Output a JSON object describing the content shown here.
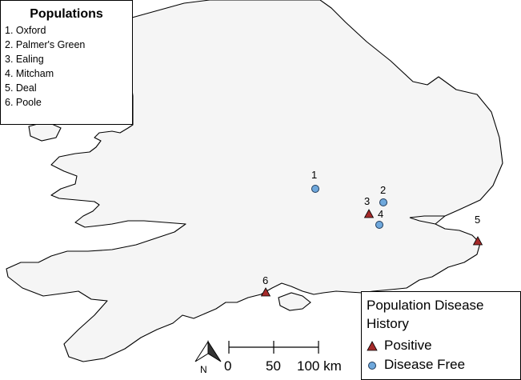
{
  "map": {
    "land_color": "#f5f5f5",
    "coast_color": "#000000"
  },
  "population_legend": {
    "title": "Populations",
    "items": [
      {
        "label": "1. Oxford"
      },
      {
        "label": "2. Palmer's Green"
      },
      {
        "label": "3. Ealing"
      },
      {
        "label": "4. Mitcham"
      },
      {
        "label": "5. Deal"
      },
      {
        "label": "6. Poole"
      }
    ]
  },
  "history_legend": {
    "title_line1": "Population Disease",
    "title_line2": "History",
    "positive_label": "Positive",
    "free_label": "Disease Free",
    "positive_color": "#a52a2a",
    "free_color": "#6fa8dc"
  },
  "sites": [
    {
      "label": "1",
      "status": "Disease Free"
    },
    {
      "label": "2",
      "status": "Disease Free"
    },
    {
      "label": "3",
      "status": "Positive"
    },
    {
      "label": "4",
      "status": "Disease Free"
    },
    {
      "label": "5",
      "status": "Positive"
    },
    {
      "label": "6",
      "status": "Positive"
    }
  ],
  "scale_bar": {
    "ticks": [
      "0",
      "50",
      "100 km"
    ]
  },
  "north_arrow": {
    "label": "N"
  }
}
